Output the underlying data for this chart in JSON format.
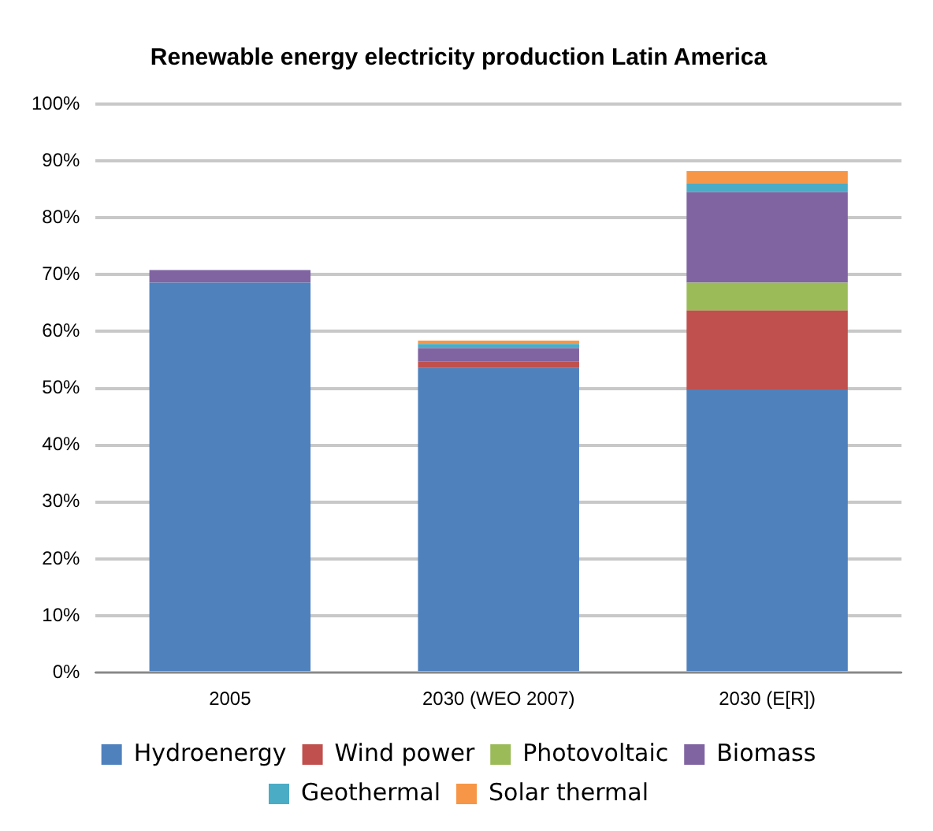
{
  "chart_data": {
    "type": "bar",
    "title": "Renewable energy electricity production Latin America",
    "categories": [
      "2005",
      "2030 (WEO 2007)",
      "2030 (E[R])"
    ],
    "stacked": true,
    "series": [
      {
        "name": "Hydroenergy",
        "color": "#4f81bd",
        "values": [
          68.6,
          53.6,
          49.8
        ]
      },
      {
        "name": "Wind power",
        "color": "#c0504d",
        "values": [
          0,
          1.1,
          13.9
        ]
      },
      {
        "name": "Photovoltaic",
        "color": "#9bbb59",
        "values": [
          0,
          0,
          4.9
        ]
      },
      {
        "name": "Biomass",
        "color": "#8064a2",
        "values": [
          2.2,
          2.4,
          15.9
        ]
      },
      {
        "name": "Geothermal",
        "color": "#4bacc6",
        "values": [
          0,
          0.7,
          1.5
        ]
      },
      {
        "name": "Solar thermal",
        "color": "#f79646",
        "values": [
          0,
          0.6,
          2.2
        ]
      }
    ],
    "ylim": [
      0,
      100
    ],
    "yticks": [
      {
        "value": 0,
        "label": "0%"
      },
      {
        "value": 10,
        "label": "10%"
      },
      {
        "value": 20,
        "label": "20%"
      },
      {
        "value": 30,
        "label": "30%"
      },
      {
        "value": 40,
        "label": "40%"
      },
      {
        "value": 50,
        "label": "50%"
      },
      {
        "value": 60,
        "label": "60%"
      },
      {
        "value": 70,
        "label": "70%"
      },
      {
        "value": 80,
        "label": "80%"
      },
      {
        "value": 90,
        "label": "90%"
      },
      {
        "value": 100,
        "label": "100%"
      }
    ],
    "grid": "y",
    "legend": "bottom"
  }
}
